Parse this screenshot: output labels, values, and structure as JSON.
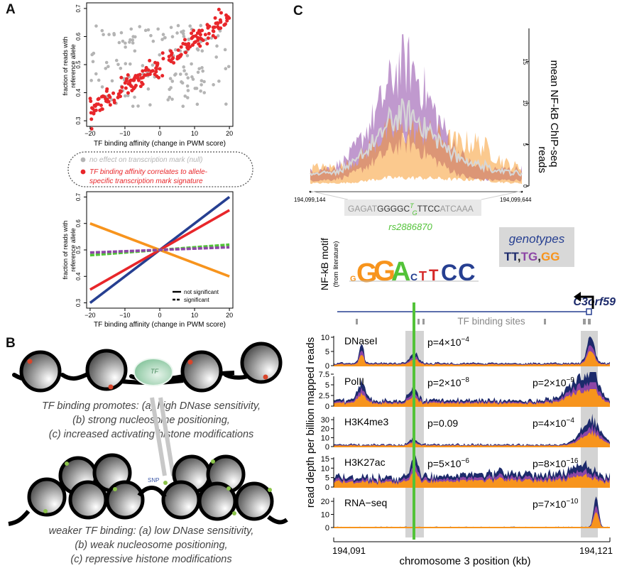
{
  "panels": {
    "a": "A",
    "b": "B",
    "c": "C"
  },
  "panel_a": {
    "top": {
      "ylabel_lines": [
        "fraction of reads with",
        "reference allele"
      ],
      "xlabel": "TF binding affinity (change in PWM score)",
      "yticks": [
        "0.3",
        "0.4",
        "0.5",
        "0.6",
        "0.7"
      ],
      "xticks": [
        "−20",
        "−10",
        "0",
        "10",
        "20"
      ]
    },
    "legend": {
      "null_text": "no effect on transcription mark (null)",
      "sig_text_lines": [
        "TF binding affinity correlates to allele-",
        "specific transcription mark signature"
      ]
    },
    "bottom": {
      "ylabel_lines": [
        "fraction of reads with",
        "reference allele"
      ],
      "xlabel": "TF binding affinity (change in PWM score)",
      "yticks": [
        "0.3",
        "0.4",
        "0.5",
        "0.6",
        "0.7"
      ],
      "xticks": [
        "−20",
        "−10",
        "0",
        "10",
        "20"
      ],
      "legend_solid": "not significant",
      "legend_dashed": "significant"
    }
  },
  "panel_b": {
    "tf_label": "TF",
    "snp_label": "SNP",
    "caption_top": [
      "TF binding promotes: (a) high DNase sensitivity,",
      "(b) strong nucleosome positioning,",
      "(c) increased activating histone modifications"
    ],
    "caption_bottom": [
      "weaker TF binding: (a) low DNase sensitivity,",
      "(b) weak nucleosome positioning,",
      "(c) repressive histone modifications"
    ]
  },
  "panel_c": {
    "chip": {
      "ylabel_lines": [
        "mean NF-kB ChIP-seq",
        "reads"
      ],
      "yticks": [
        "0",
        "5",
        "10",
        "15"
      ],
      "x_left": "194,099,144",
      "x_right": "194,099,644"
    },
    "sequence": {
      "left": "GAGAT",
      "core": "GGGGC",
      "alt_top": "T",
      "alt_bottom": "G",
      "core2": "TTCC",
      "right": "ATCAAA"
    },
    "snp_id": "rs2886870",
    "motif_label": [
      "NF-kB motif",
      "(from literature)"
    ],
    "genotypes": {
      "title": "genotypes",
      "tt": "TT",
      "tg": "TG",
      "gg": "GG",
      "sep": ","
    },
    "gene": "C3orf59",
    "tfbs_label": "TF binding sites",
    "ylabel": "read depth per billion mapped reads",
    "xlabel": "chromosome 3 position (kb)",
    "x_left": "194,091",
    "x_right": "194,121",
    "tracks": [
      {
        "name": "DNaseI",
        "p": "p=4×10",
        "p_exp": "−4",
        "p2": "",
        "p2_exp": "",
        "yticks": [
          "0",
          "5",
          "10"
        ]
      },
      {
        "name": "PolII",
        "p": "p=2×10",
        "p_exp": "−8",
        "p2": "p=2×10",
        "p2_exp": "−9",
        "yticks": [
          "0",
          "2.5",
          "5",
          "7.5"
        ]
      },
      {
        "name": "H3K4me3",
        "p": "p=0.09",
        "p_exp": "",
        "p2": "p=4×10",
        "p2_exp": "−4",
        "yticks": [
          "0",
          "10",
          "20",
          "30"
        ]
      },
      {
        "name": "H3K27ac",
        "p": "p=5×10",
        "p_exp": "−6",
        "p2": "p=8×10",
        "p2_exp": "−16",
        "yticks": [
          "0",
          "5",
          "10",
          "15"
        ]
      },
      {
        "name": "RNA−seq",
        "p": "",
        "p_exp": "",
        "p2": "p=7×10",
        "p2_exp": "−10",
        "yticks": [
          "0",
          "10",
          "20"
        ]
      }
    ]
  },
  "colors": {
    "red": "#e8262a",
    "grey": "#b4b4b4",
    "blue": "#263f91",
    "purple": "#8d46a6",
    "orange": "#f7941d",
    "green": "#53c339",
    "navy": "#1c2a6b"
  },
  "chart_data": [
    {
      "type": "scatter",
      "xlabel": "TF binding affinity (change in PWM score)",
      "ylabel": "fraction of reads with reference allele",
      "xlim": [
        -21,
        21
      ],
      "ylim": [
        0.28,
        0.72
      ],
      "series": [
        {
          "name": "TF binding affinity correlates to allele-specific transcription mark signature",
          "trend": {
            "slope": 0.0085,
            "intercept": 0.5,
            "noise": 0.018
          },
          "n": 190
        },
        {
          "name": "no effect on transcription mark (null)",
          "trend": {
            "slope": 0,
            "intercept": 0.49,
            "range": [
              0.35,
              0.64
            ]
          },
          "n": 150
        }
      ]
    },
    {
      "type": "line",
      "xlabel": "TF binding affinity (change in PWM score)",
      "ylabel": "fraction of reads with reference allele",
      "xlim": [
        -21,
        21
      ],
      "ylim": [
        0.28,
        0.72
      ],
      "series": [
        {
          "color": "blue",
          "style": "solid",
          "x": [
            -20,
            20
          ],
          "y": [
            0.3,
            0.7
          ]
        },
        {
          "color": "red",
          "style": "solid",
          "x": [
            -20,
            20
          ],
          "y": [
            0.35,
            0.65
          ]
        },
        {
          "color": "orange",
          "style": "solid",
          "x": [
            -20,
            20
          ],
          "y": [
            0.6,
            0.4
          ]
        },
        {
          "color": "green",
          "style": "dashed",
          "x": [
            -20,
            20
          ],
          "y": [
            0.48,
            0.52
          ]
        },
        {
          "color": "purple",
          "style": "dashed",
          "x": [
            -20,
            20
          ],
          "y": [
            0.49,
            0.51
          ]
        }
      ]
    },
    {
      "type": "area",
      "ylabel": "mean NF-kB ChIP-seq reads",
      "xlim": [
        194099144,
        194099644
      ],
      "ylim": [
        0,
        19
      ],
      "series_colors": [
        "purple",
        "orange",
        "grey"
      ]
    },
    {
      "type": "area",
      "xlabel": "chromosome 3 position (kb)",
      "ylabel": "read depth per billion mapped reads",
      "xlim": [
        194091,
        194121
      ],
      "tracks": [
        "DNaseI",
        "PolII",
        "H3K4me3",
        "H3K27ac",
        "RNA-seq"
      ],
      "series_colors": [
        "navy",
        "purple",
        "orange"
      ]
    }
  ]
}
